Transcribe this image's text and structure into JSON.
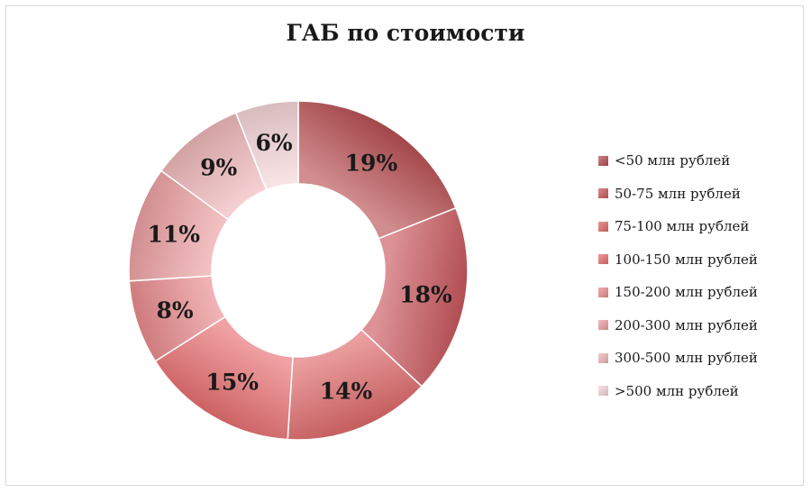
{
  "chart_data": {
    "type": "pie",
    "title": "ГАБ по стоимости",
    "categories": [
      "<50 млн рублей",
      "50-75 млн рублей",
      "75-100 млн рублей",
      "100-150 млн рублей",
      "150-200 млн рублей",
      "200-300 млн рублей",
      "300-500 млн рублей",
      ">500 млн рублей"
    ],
    "values": [
      19,
      18,
      14,
      15,
      8,
      11,
      9,
      6
    ],
    "labels": [
      "19%",
      "18%",
      "14%",
      "15%",
      "8%",
      "11%",
      "9%",
      "6%"
    ],
    "colors": [
      "#b84f53",
      "#c9585d",
      "#df6a6b",
      "#e86f72",
      "#ea8c8e",
      "#eda0a3",
      "#efb7b9",
      "#f6d6d8"
    ],
    "style": "doughnut",
    "legend_position": "right"
  }
}
